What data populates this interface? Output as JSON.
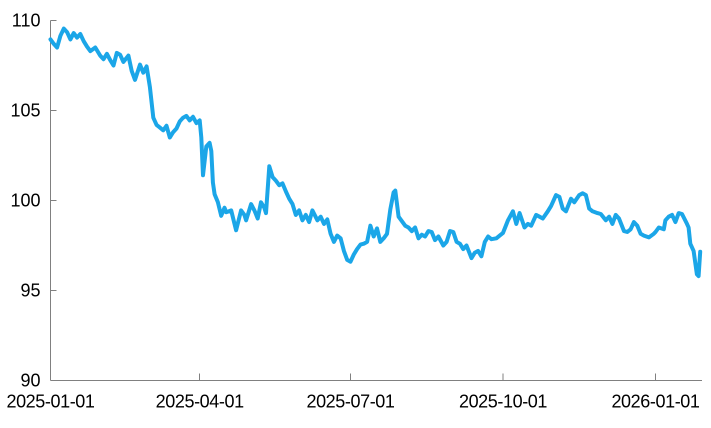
{
  "page": {
    "background": "#FFFFFF"
  },
  "chart_data": {
    "type": "line",
    "title": "",
    "xlabel": "",
    "ylabel": "",
    "x_domain": [
      "2025-01-01",
      "2026-01-29"
    ],
    "ylim": [
      90,
      110
    ],
    "yticks": [
      90,
      95,
      100,
      105,
      110
    ],
    "ytick_labels": [
      "90",
      "95",
      "100",
      "105",
      "110"
    ],
    "xticks": [
      "2025-01-01",
      "2025-04-01",
      "2025-07-01",
      "2025-10-01",
      "2026-01-01"
    ],
    "xtick_labels": [
      "2025-01-01",
      "2025-04-01",
      "2025-07-01",
      "2025-10-01",
      "2026-01-01"
    ],
    "grid": false,
    "legend": false,
    "colors": {
      "line": "#1BA6E8",
      "axis": "#808080",
      "tick_label": "#000000",
      "background": "#FFFFFF"
    },
    "series": [
      {
        "points": [
          [
            "2025-01-01",
            108.95
          ],
          [
            "2025-01-03",
            108.7
          ],
          [
            "2025-01-05",
            108.5
          ],
          [
            "2025-01-07",
            109.15
          ],
          [
            "2025-01-09",
            109.55
          ],
          [
            "2025-01-11",
            109.35
          ],
          [
            "2025-01-13",
            108.95
          ],
          [
            "2025-01-15",
            109.3
          ],
          [
            "2025-01-17",
            109.05
          ],
          [
            "2025-01-19",
            109.25
          ],
          [
            "2025-01-21",
            108.85
          ],
          [
            "2025-01-23",
            108.55
          ],
          [
            "2025-01-25",
            108.3
          ],
          [
            "2025-01-28",
            108.5
          ],
          [
            "2025-01-31",
            108.05
          ],
          [
            "2025-02-02",
            107.85
          ],
          [
            "2025-02-04",
            108.15
          ],
          [
            "2025-02-06",
            107.8
          ],
          [
            "2025-02-08",
            107.5
          ],
          [
            "2025-02-10",
            108.2
          ],
          [
            "2025-02-12",
            108.1
          ],
          [
            "2025-02-14",
            107.7
          ],
          [
            "2025-02-17",
            108.05
          ],
          [
            "2025-02-19",
            107.2
          ],
          [
            "2025-02-21",
            106.7
          ],
          [
            "2025-02-24",
            107.55
          ],
          [
            "2025-02-26",
            107.1
          ],
          [
            "2025-02-28",
            107.45
          ],
          [
            "2025-03-02",
            106.3
          ],
          [
            "2025-03-04",
            104.6
          ],
          [
            "2025-03-06",
            104.2
          ],
          [
            "2025-03-08",
            104.05
          ],
          [
            "2025-03-10",
            103.9
          ],
          [
            "2025-03-12",
            104.15
          ],
          [
            "2025-03-14",
            103.5
          ],
          [
            "2025-03-16",
            103.8
          ],
          [
            "2025-03-18",
            104.0
          ],
          [
            "2025-03-20",
            104.4
          ],
          [
            "2025-03-22",
            104.6
          ],
          [
            "2025-03-24",
            104.7
          ],
          [
            "2025-03-26",
            104.45
          ],
          [
            "2025-03-28",
            104.65
          ],
          [
            "2025-03-30",
            104.3
          ],
          [
            "2025-04-01",
            104.45
          ],
          [
            "2025-04-02",
            103.5
          ],
          [
            "2025-04-03",
            101.4
          ],
          [
            "2025-04-05",
            103.0
          ],
          [
            "2025-04-07",
            103.2
          ],
          [
            "2025-04-08",
            102.75
          ],
          [
            "2025-04-09",
            101.0
          ],
          [
            "2025-04-10",
            100.35
          ],
          [
            "2025-04-12",
            99.9
          ],
          [
            "2025-04-14",
            99.15
          ],
          [
            "2025-04-16",
            99.6
          ],
          [
            "2025-04-17",
            99.35
          ],
          [
            "2025-04-20",
            99.45
          ],
          [
            "2025-04-22",
            98.7
          ],
          [
            "2025-04-23",
            98.35
          ],
          [
            "2025-04-26",
            99.45
          ],
          [
            "2025-04-28",
            99.2
          ],
          [
            "2025-04-29",
            98.9
          ],
          [
            "2025-05-02",
            99.8
          ],
          [
            "2025-05-04",
            99.45
          ],
          [
            "2025-05-06",
            99.0
          ],
          [
            "2025-05-08",
            99.9
          ],
          [
            "2025-05-10",
            99.6
          ],
          [
            "2025-05-11",
            99.3
          ],
          [
            "2025-05-13",
            101.9
          ],
          [
            "2025-05-15",
            101.3
          ],
          [
            "2025-05-17",
            101.1
          ],
          [
            "2025-05-19",
            100.85
          ],
          [
            "2025-05-21",
            100.95
          ],
          [
            "2025-05-23",
            100.5
          ],
          [
            "2025-05-25",
            100.1
          ],
          [
            "2025-05-27",
            99.8
          ],
          [
            "2025-05-29",
            99.2
          ],
          [
            "2025-05-31",
            99.45
          ],
          [
            "2025-06-02",
            98.9
          ],
          [
            "2025-06-04",
            99.2
          ],
          [
            "2025-06-06",
            98.8
          ],
          [
            "2025-06-08",
            99.45
          ],
          [
            "2025-06-11",
            98.9
          ],
          [
            "2025-06-13",
            99.1
          ],
          [
            "2025-06-15",
            98.7
          ],
          [
            "2025-06-17",
            98.95
          ],
          [
            "2025-06-19",
            98.15
          ],
          [
            "2025-06-21",
            97.7
          ],
          [
            "2025-06-23",
            98.05
          ],
          [
            "2025-06-25",
            97.9
          ],
          [
            "2025-06-27",
            97.2
          ],
          [
            "2025-06-29",
            96.7
          ],
          [
            "2025-07-01",
            96.6
          ],
          [
            "2025-07-03",
            97.0
          ],
          [
            "2025-07-05",
            97.3
          ],
          [
            "2025-07-07",
            97.55
          ],
          [
            "2025-07-09",
            97.6
          ],
          [
            "2025-07-11",
            97.7
          ],
          [
            "2025-07-13",
            98.6
          ],
          [
            "2025-07-15",
            98.0
          ],
          [
            "2025-07-17",
            98.45
          ],
          [
            "2025-07-19",
            97.7
          ],
          [
            "2025-07-21",
            97.9
          ],
          [
            "2025-07-23",
            98.15
          ],
          [
            "2025-07-25",
            99.5
          ],
          [
            "2025-07-27",
            100.45
          ],
          [
            "2025-07-28",
            100.55
          ],
          [
            "2025-07-30",
            99.1
          ],
          [
            "2025-08-01",
            98.85
          ],
          [
            "2025-08-03",
            98.6
          ],
          [
            "2025-08-05",
            98.5
          ],
          [
            "2025-08-07",
            98.3
          ],
          [
            "2025-08-09",
            98.5
          ],
          [
            "2025-08-11",
            97.9
          ],
          [
            "2025-08-13",
            98.1
          ],
          [
            "2025-08-15",
            98.0
          ],
          [
            "2025-08-17",
            98.3
          ],
          [
            "2025-08-19",
            98.25
          ],
          [
            "2025-08-21",
            97.8
          ],
          [
            "2025-08-23",
            98.0
          ],
          [
            "2025-08-26",
            97.5
          ],
          [
            "2025-08-28",
            97.7
          ],
          [
            "2025-08-30",
            98.3
          ],
          [
            "2025-09-01",
            98.25
          ],
          [
            "2025-09-03",
            97.7
          ],
          [
            "2025-09-05",
            97.6
          ],
          [
            "2025-09-07",
            97.3
          ],
          [
            "2025-09-09",
            97.5
          ],
          [
            "2025-09-12",
            96.8
          ],
          [
            "2025-09-14",
            97.1
          ],
          [
            "2025-09-16",
            97.2
          ],
          [
            "2025-09-18",
            96.9
          ],
          [
            "2025-09-20",
            97.7
          ],
          [
            "2025-09-22",
            98.0
          ],
          [
            "2025-09-24",
            97.85
          ],
          [
            "2025-09-27",
            97.9
          ],
          [
            "2025-09-29",
            98.05
          ],
          [
            "2025-10-01",
            98.2
          ],
          [
            "2025-10-04",
            98.9
          ],
          [
            "2025-10-07",
            99.4
          ],
          [
            "2025-10-09",
            98.7
          ],
          [
            "2025-10-11",
            99.3
          ],
          [
            "2025-10-14",
            98.5
          ],
          [
            "2025-10-16",
            98.7
          ],
          [
            "2025-10-18",
            98.6
          ],
          [
            "2025-10-21",
            99.2
          ],
          [
            "2025-10-23",
            99.1
          ],
          [
            "2025-10-25",
            99.0
          ],
          [
            "2025-10-28",
            99.4
          ],
          [
            "2025-10-30",
            99.7
          ],
          [
            "2025-11-02",
            100.3
          ],
          [
            "2025-11-04",
            100.2
          ],
          [
            "2025-11-06",
            99.55
          ],
          [
            "2025-11-08",
            99.4
          ],
          [
            "2025-11-11",
            100.1
          ],
          [
            "2025-11-13",
            99.9
          ],
          [
            "2025-11-16",
            100.3
          ],
          [
            "2025-11-18",
            100.4
          ],
          [
            "2025-11-20",
            100.3
          ],
          [
            "2025-11-22",
            99.55
          ],
          [
            "2025-11-24",
            99.4
          ],
          [
            "2025-11-27",
            99.3
          ],
          [
            "2025-11-29",
            99.25
          ],
          [
            "2025-12-02",
            98.9
          ],
          [
            "2025-12-04",
            99.1
          ],
          [
            "2025-12-06",
            98.7
          ],
          [
            "2025-12-08",
            99.2
          ],
          [
            "2025-12-10",
            99.0
          ],
          [
            "2025-12-13",
            98.3
          ],
          [
            "2025-12-15",
            98.25
          ],
          [
            "2025-12-17",
            98.4
          ],
          [
            "2025-12-19",
            98.8
          ],
          [
            "2025-12-21",
            98.6
          ],
          [
            "2025-12-23",
            98.15
          ],
          [
            "2025-12-25",
            98.05
          ],
          [
            "2025-12-28",
            97.95
          ],
          [
            "2025-12-31",
            98.15
          ],
          [
            "2026-01-01",
            98.25
          ],
          [
            "2026-01-03",
            98.5
          ],
          [
            "2026-01-06",
            98.4
          ],
          [
            "2026-01-07",
            98.9
          ],
          [
            "2026-01-09",
            99.1
          ],
          [
            "2026-01-11",
            99.2
          ],
          [
            "2026-01-13",
            98.8
          ],
          [
            "2026-01-15",
            99.3
          ],
          [
            "2026-01-17",
            99.25
          ],
          [
            "2026-01-20",
            98.7
          ],
          [
            "2026-01-21",
            98.5
          ],
          [
            "2026-01-22",
            97.6
          ],
          [
            "2026-01-24",
            97.2
          ],
          [
            "2026-01-26",
            95.9
          ],
          [
            "2026-01-27",
            95.8
          ],
          [
            "2026-01-28",
            97.15
          ]
        ]
      }
    ]
  }
}
